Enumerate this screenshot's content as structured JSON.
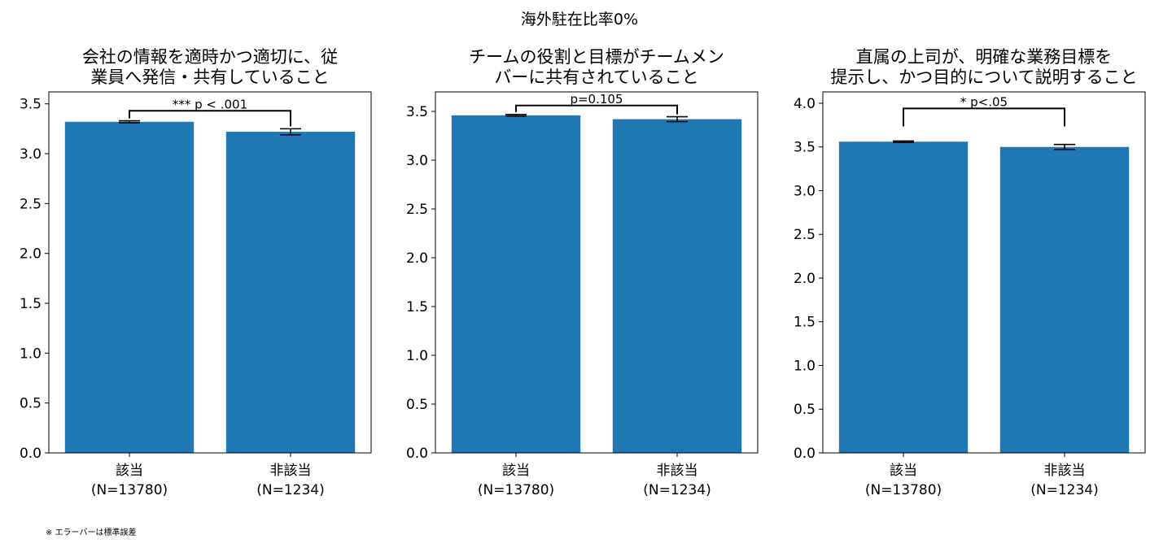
{
  "figure": {
    "suptitle": "海外駐在比率0%",
    "footnote": "※ エラーバーは標準誤差",
    "bar_color": "#1f77b4"
  },
  "chart_data": [
    {
      "type": "bar",
      "title": [
        "会社の情報を適時かつ適切に、従",
        "業員へ発信・共有していること"
      ],
      "categories": [
        [
          "該当",
          "(N=13780)"
        ],
        [
          "非該当",
          "(N=1234)"
        ]
      ],
      "values": [
        3.32,
        3.22
      ],
      "errors": [
        0.01,
        0.03
      ],
      "ylim": [
        0,
        3.62
      ],
      "yticks": [
        "0.0",
        "0.5",
        "1.0",
        "1.5",
        "2.0",
        "2.5",
        "3.0",
        "3.5"
      ],
      "significance": {
        "label": "*** p < .001",
        "y": 3.43
      },
      "xlabel": "",
      "ylabel": ""
    },
    {
      "type": "bar",
      "title": [
        "チームの役割と目標がチームメン",
        "バーに共有されていること"
      ],
      "categories": [
        [
          "該当",
          "(N=13780)"
        ],
        [
          "非該当",
          "(N=1234)"
        ]
      ],
      "values": [
        3.46,
        3.42
      ],
      "errors": [
        0.008,
        0.025
      ],
      "ylim": [
        0,
        3.7
      ],
      "yticks": [
        "0.0",
        "0.5",
        "1.0",
        "1.5",
        "2.0",
        "2.5",
        "3.0",
        "3.5"
      ],
      "significance": {
        "label": "p=0.105",
        "y": 3.56
      },
      "xlabel": "",
      "ylabel": ""
    },
    {
      "type": "bar",
      "title": [
        "直属の上司が、明確な業務目標を",
        "提示し、かつ目的について説明すること"
      ],
      "categories": [
        [
          "該当",
          "(N=13780)"
        ],
        [
          "非該当",
          "(N=1234)"
        ]
      ],
      "values": [
        3.56,
        3.5
      ],
      "errors": [
        0.008,
        0.028
      ],
      "ylim": [
        0,
        4.13
      ],
      "yticks": [
        "0.0",
        "0.5",
        "1.0",
        "1.5",
        "2.0",
        "2.5",
        "3.0",
        "3.5",
        "4.0"
      ],
      "significance": {
        "label": "* p<.05",
        "y": 3.94
      },
      "xlabel": "",
      "ylabel": ""
    }
  ]
}
